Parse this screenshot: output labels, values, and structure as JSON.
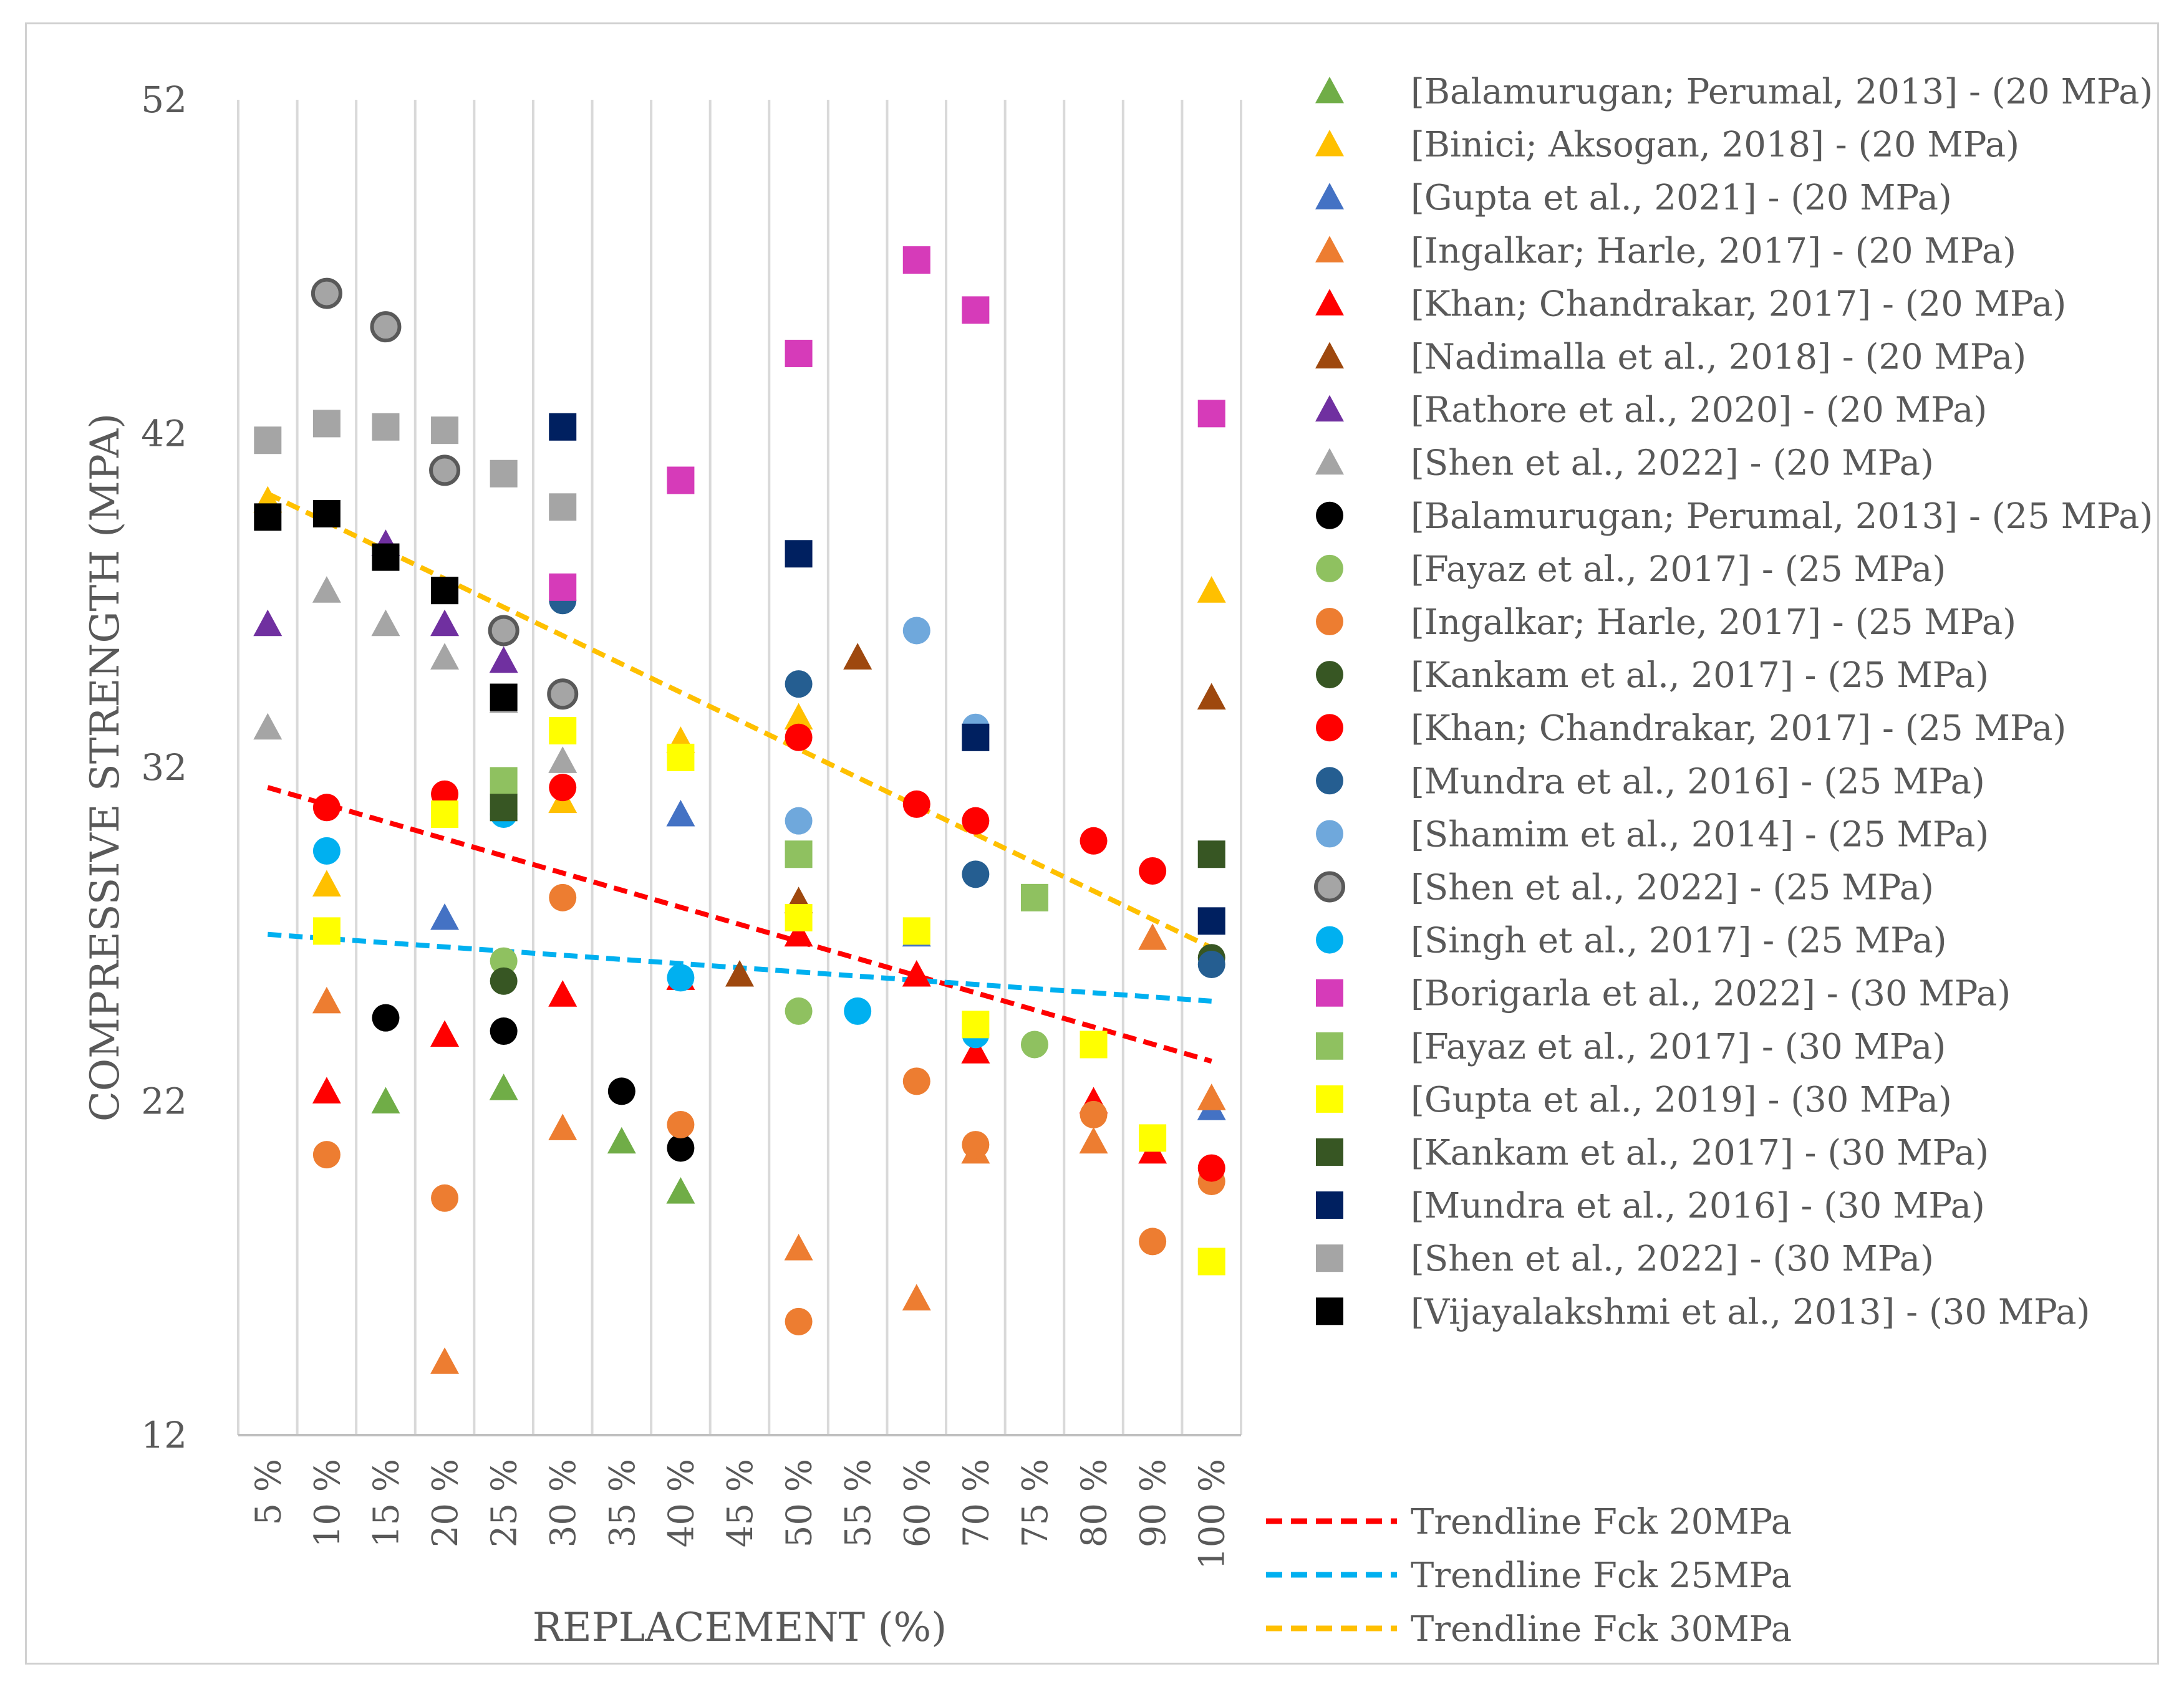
{
  "chart_data": {
    "type": "scatter",
    "title": "",
    "xlabel": "REPLACEMENT (%)",
    "ylabel": "COMPRESSIVE STRENGTH (MPA)",
    "ylim": [
      12,
      52
    ],
    "yticks": [
      12,
      22,
      32,
      42,
      52
    ],
    "categories": [
      "5 %",
      "10 %",
      "15 %",
      "20 %",
      "25 %",
      "30 %",
      "35 %",
      "40 %",
      "45 %",
      "50 %",
      "55 %",
      "60 %",
      "70 %",
      "75 %",
      "80 %",
      "90 %",
      "100 %"
    ],
    "grid": true,
    "legend_position": "right",
    "series": [
      {
        "name": "[Balamurugan; Perumal, 2013] - (20 MPa)",
        "marker": "triangle",
        "color": "#70AD47",
        "points": [
          [
            2,
            22.0
          ],
          [
            4,
            22.4
          ],
          [
            6,
            20.8
          ],
          [
            7,
            19.3
          ]
        ]
      },
      {
        "name": "[Binici; Aksogan, 2018] - (20 MPa)",
        "marker": "triangle",
        "color": "#FFC000",
        "points": [
          [
            0,
            40.0
          ],
          [
            1,
            28.5
          ],
          [
            5,
            31.0
          ],
          [
            7,
            32.8
          ],
          [
            9,
            33.5
          ],
          [
            16,
            37.3
          ]
        ]
      },
      {
        "name": "[Gupta et al., 2021] - (20 MPa)",
        "marker": "triangle",
        "color": "#4472C4",
        "points": [
          [
            3,
            27.5
          ],
          [
            7,
            30.6
          ],
          [
            11,
            27.0
          ],
          [
            16,
            21.8
          ]
        ]
      },
      {
        "name": "[Ingalkar; Harle, 2017] - (20 MPa)",
        "marker": "triangle",
        "color": "#ED7D31",
        "points": [
          [
            1,
            25.0
          ],
          [
            3,
            14.2
          ],
          [
            5,
            21.2
          ],
          [
            9,
            17.6
          ],
          [
            11,
            16.1
          ],
          [
            12,
            20.5
          ],
          [
            14,
            20.8
          ],
          [
            15,
            26.9
          ],
          [
            16,
            22.1
          ]
        ]
      },
      {
        "name": "[Khan; Chandrakar, 2017] - (20 MPa)",
        "marker": "triangle",
        "color": "#FF0000",
        "points": [
          [
            1,
            22.3
          ],
          [
            3,
            24.0
          ],
          [
            5,
            25.2
          ],
          [
            7,
            25.7
          ],
          [
            9,
            27.0
          ],
          [
            11,
            25.8
          ],
          [
            12,
            23.5
          ],
          [
            14,
            22.0
          ],
          [
            15,
            20.5
          ]
        ]
      },
      {
        "name": "[Nadimalla et al., 2018] - (20 MPa)",
        "marker": "triangle",
        "color": "#9E480E",
        "points": [
          [
            8,
            25.8
          ],
          [
            9,
            28.0
          ],
          [
            10,
            35.3
          ],
          [
            16,
            34.1
          ]
        ]
      },
      {
        "name": "[Rathore et al., 2020] - (20 MPa)",
        "marker": "triangle",
        "color": "#7030A0",
        "points": [
          [
            0,
            36.3
          ],
          [
            2,
            38.7
          ],
          [
            3,
            36.3
          ],
          [
            4,
            35.2
          ]
        ]
      },
      {
        "name": "[Shen et al., 2022] - (20 MPa)",
        "marker": "triangle",
        "color": "#A5A5A5",
        "points": [
          [
            0,
            33.2
          ],
          [
            1,
            37.3
          ],
          [
            2,
            36.3
          ],
          [
            3,
            35.3
          ],
          [
            4,
            34.0
          ],
          [
            5,
            32.2
          ]
        ]
      },
      {
        "name": "[Balamurugan; Perumal, 2013] - (25 MPa)",
        "marker": "circle",
        "color": "#000000",
        "points": [
          [
            2,
            24.5
          ],
          [
            4,
            24.1
          ],
          [
            6,
            22.3
          ],
          [
            7,
            20.6
          ]
        ]
      },
      {
        "name": "[Fayaz et al., 2017] - (25 MPa)",
        "marker": "circle",
        "color": "#8FC160",
        "points": [
          [
            4,
            26.2
          ],
          [
            9,
            24.7
          ],
          [
            13,
            23.7
          ]
        ]
      },
      {
        "name": "[Ingalkar; Harle, 2017] - (25 MPa)",
        "marker": "circle",
        "color": "#ED7D31",
        "points": [
          [
            1,
            20.4
          ],
          [
            3,
            19.1
          ],
          [
            5,
            28.1
          ],
          [
            7,
            21.3
          ],
          [
            9,
            15.4
          ],
          [
            11,
            22.6
          ],
          [
            12,
            20.7
          ],
          [
            14,
            21.6
          ],
          [
            15,
            17.8
          ],
          [
            16,
            19.6
          ]
        ]
      },
      {
        "name": "[Kankam et al., 2017] - (25 MPa)",
        "marker": "circle",
        "color": "#375623",
        "points": [
          [
            4,
            25.6
          ],
          [
            16,
            26.3
          ]
        ]
      },
      {
        "name": "[Khan; Chandrakar, 2017] - (25 MPa)",
        "marker": "circle",
        "color": "#FF0000",
        "points": [
          [
            1,
            30.8
          ],
          [
            3,
            31.2
          ],
          [
            5,
            31.4
          ],
          [
            9,
            32.9
          ],
          [
            11,
            30.9
          ],
          [
            12,
            30.4
          ],
          [
            14,
            29.8
          ],
          [
            15,
            28.9
          ],
          [
            16,
            20.0
          ]
        ]
      },
      {
        "name": "[Mundra et al., 2016] - (25 MPa)",
        "marker": "circle",
        "color": "#255E91",
        "points": [
          [
            5,
            37.0
          ],
          [
            9,
            34.5
          ],
          [
            12,
            28.8
          ],
          [
            16,
            26.1
          ]
        ]
      },
      {
        "name": "[Shamim et al., 2014] - (25 MPa)",
        "marker": "circle",
        "color": "#6FA8DC",
        "points": [
          [
            9,
            30.4
          ],
          [
            11,
            36.1
          ],
          [
            12,
            33.2
          ]
        ]
      },
      {
        "name": "[Shen et al., 2022] - (25 MPa)",
        "marker": "circle",
        "color": "#A5A5A5",
        "points": [
          [
            1,
            46.2
          ],
          [
            2,
            45.2
          ],
          [
            3,
            40.9
          ],
          [
            4,
            36.1
          ],
          [
            5,
            34.2
          ]
        ]
      },
      {
        "name": "[Singh et al., 2017] - (25 MPa)",
        "marker": "circle",
        "color": "#00B0F0",
        "points": [
          [
            1,
            29.5
          ],
          [
            4,
            30.6
          ],
          [
            7,
            25.7
          ],
          [
            10,
            24.7
          ],
          [
            12,
            24.0
          ]
        ]
      },
      {
        "name": "[Borigarla et al., 2022] - (30 MPa)",
        "marker": "square",
        "color": "#D63BB9",
        "points": [
          [
            5,
            37.4
          ],
          [
            7,
            40.6
          ],
          [
            9,
            44.4
          ],
          [
            11,
            47.2
          ],
          [
            12,
            45.7
          ],
          [
            16,
            42.6
          ]
        ]
      },
      {
        "name": "[Fayaz et al., 2017] - (30 MPa)",
        "marker": "square",
        "color": "#8FC160",
        "points": [
          [
            4,
            31.6
          ],
          [
            9,
            29.4
          ],
          [
            13,
            28.1
          ]
        ]
      },
      {
        "name": "[Gupta et al., 2019] - (30 MPa)",
        "marker": "square",
        "color": "#FFFF00",
        "points": [
          [
            1,
            27.1
          ],
          [
            3,
            30.6
          ],
          [
            5,
            33.1
          ],
          [
            7,
            32.3
          ],
          [
            9,
            27.5
          ],
          [
            11,
            27.1
          ],
          [
            12,
            24.3
          ],
          [
            14,
            23.7
          ],
          [
            15,
            20.9
          ],
          [
            16,
            17.2
          ]
        ]
      },
      {
        "name": "[Kankam et al., 2017] - (30 MPa)",
        "marker": "square",
        "color": "#375623",
        "points": [
          [
            4,
            30.8
          ],
          [
            16,
            29.4
          ]
        ]
      },
      {
        "name": "[Mundra et al., 2016] - (30 MPa)",
        "marker": "square",
        "color": "#002060",
        "points": [
          [
            5,
            42.2
          ],
          [
            9,
            38.4
          ],
          [
            12,
            32.9
          ],
          [
            16,
            27.4
          ]
        ]
      },
      {
        "name": "[Shen et al., 2022] - (30 MPa)",
        "marker": "square",
        "color": "#A5A5A5",
        "points": [
          [
            0,
            41.8
          ],
          [
            1,
            42.3
          ],
          [
            2,
            42.2
          ],
          [
            3,
            42.1
          ],
          [
            4,
            40.8
          ],
          [
            5,
            39.8
          ]
        ]
      },
      {
        "name": "[Vijayalakshmi et al., 2013] - (30 MPa)",
        "marker": "square",
        "color": "#000000",
        "points": [
          [
            0,
            39.5
          ],
          [
            1,
            39.6
          ],
          [
            2,
            38.3
          ],
          [
            3,
            37.3
          ],
          [
            4,
            34.1
          ]
        ]
      }
    ],
    "trendlines": [
      {
        "name": "Trendline Fck 20MPa",
        "color": "#FF0000",
        "from": [
          0,
          31.4
        ],
        "to": [
          16,
          23.2
        ]
      },
      {
        "name": "Trendline Fck 25MPa",
        "color": "#00B0F0",
        "from": [
          0,
          27.0
        ],
        "to": [
          16,
          25.0
        ]
      },
      {
        "name": "Trendline Fck 30MPa",
        "color": "#FFC000",
        "from": [
          0,
          40.2
        ],
        "to": [
          16,
          26.6
        ]
      }
    ]
  }
}
